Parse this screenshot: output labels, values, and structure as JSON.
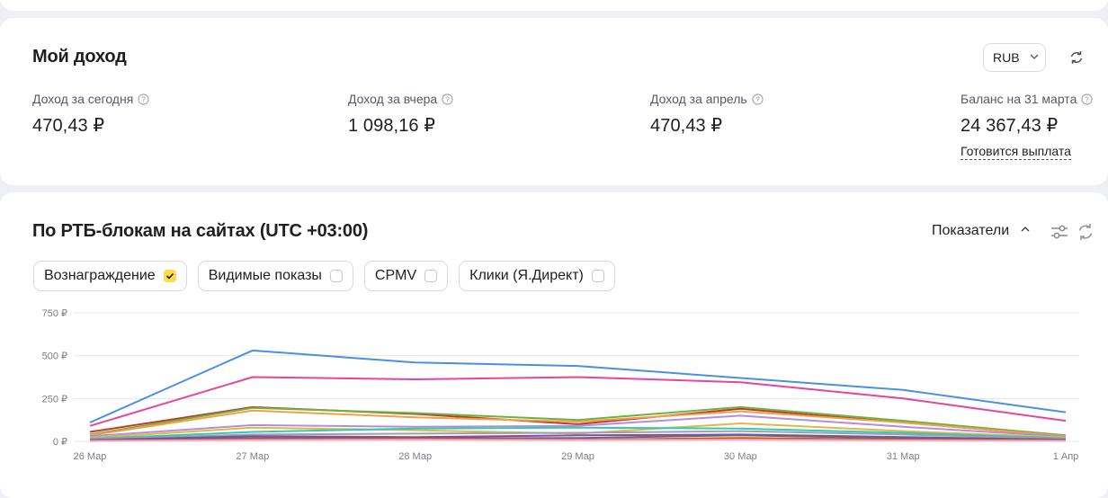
{
  "income": {
    "title": "Мой доход",
    "currency": "RUB",
    "metrics": [
      {
        "label": "Доход за сегодня",
        "value": "470,43 ₽"
      },
      {
        "label": "Доход за вчера",
        "value": "1 098,16 ₽"
      },
      {
        "label": "Доход за апрель",
        "value": "470,43 ₽"
      },
      {
        "label": "Баланс на 31 марта",
        "value": "24 367,43 ₽"
      }
    ],
    "payout_link": "Готовится выплата"
  },
  "chart_section": {
    "title": "По РТБ-блокам на сайтах (UTC +03:00)",
    "indicators_label": "Показатели",
    "chips": [
      {
        "label": "Вознаграждение",
        "checked": true
      },
      {
        "label": "Видимые показы",
        "checked": false
      },
      {
        "label": "CPMV",
        "checked": false
      },
      {
        "label": "Клики (Я.Директ)",
        "checked": false
      }
    ]
  },
  "colors": {
    "accent": "#ffdb4d",
    "grid": "#e6e8eb"
  },
  "chart_data": {
    "type": "line",
    "x": [
      "26 Мар",
      "27 Мар",
      "28 Мар",
      "29 Мар",
      "30 Мар",
      "31 Мар",
      "1 Апр"
    ],
    "y_ticks": [
      "0 ₽",
      "250 ₽",
      "500 ₽",
      "750 ₽"
    ],
    "ylim": [
      0,
      750
    ],
    "grid": true,
    "series": [
      {
        "color": "#4a90e2",
        "values": [
          110,
          530,
          460,
          440,
          370,
          300,
          170
        ]
      },
      {
        "color": "#e8449a",
        "values": [
          90,
          375,
          362,
          375,
          345,
          250,
          120
        ]
      },
      {
        "color": "#c0392b",
        "values": [
          55,
          200,
          160,
          100,
          190,
          110,
          30
        ]
      },
      {
        "color": "#6ab43e",
        "values": [
          40,
          195,
          165,
          125,
          200,
          120,
          35
        ]
      },
      {
        "color": "#f0a04b",
        "values": [
          35,
          180,
          140,
          115,
          175,
          110,
          30
        ]
      },
      {
        "color": "#b58ddc",
        "values": [
          30,
          95,
          85,
          90,
          150,
          85,
          28
        ]
      },
      {
        "color": "#e3b645",
        "values": [
          20,
          80,
          65,
          45,
          105,
          60,
          22
        ]
      },
      {
        "color": "#2ecbb5",
        "values": [
          15,
          55,
          75,
          80,
          75,
          50,
          18
        ]
      },
      {
        "color": "#9aa3ad",
        "values": [
          12,
          40,
          45,
          50,
          60,
          40,
          15
        ]
      },
      {
        "color": "#8e44ad",
        "values": [
          8,
          30,
          25,
          35,
          40,
          25,
          10
        ]
      },
      {
        "color": "#5d6d7e",
        "values": [
          5,
          20,
          18,
          20,
          35,
          18,
          8
        ]
      },
      {
        "color": "#d35400",
        "values": [
          3,
          12,
          15,
          10,
          20,
          10,
          5
        ]
      },
      {
        "color": "#f3a6c8",
        "values": [
          2,
          8,
          10,
          8,
          10,
          6,
          3
        ]
      }
    ]
  }
}
